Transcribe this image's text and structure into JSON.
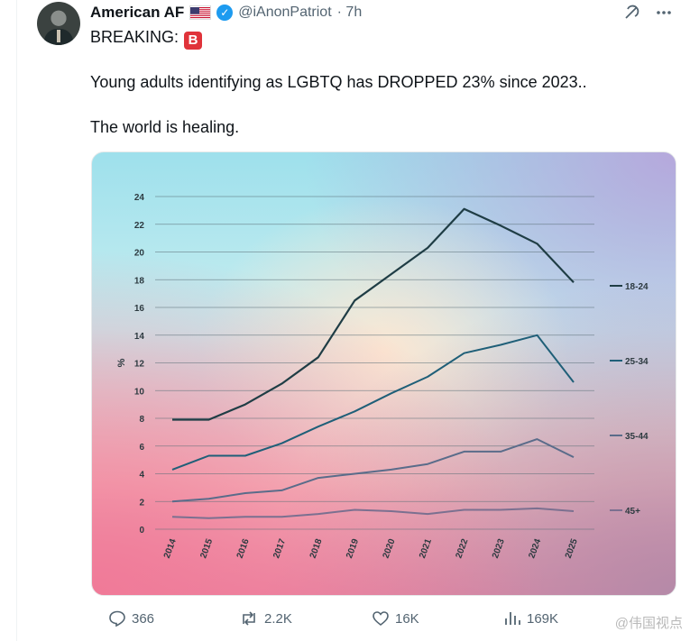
{
  "tweet": {
    "author_name": "American AF",
    "handle": "@iAnonPatriot",
    "time": "· 7h",
    "line1": "BREAKING:",
    "badge": "B",
    "line2": "Young adults identifying as LGBTQ has DROPPED 23% since 2023..",
    "line3": "The world is healing."
  },
  "icons": {
    "verified": "verified-badge-icon",
    "flag": "us-flag-icon",
    "grok": "grok-icon",
    "more": "more-icon"
  },
  "actions": {
    "replies": "366",
    "reposts": "2.2K",
    "likes": "16K",
    "views": "169K"
  },
  "watermark": "@伟国视点",
  "colors": {
    "accent": "#1d9bf0",
    "badge": "#e0333a"
  },
  "chart_data": {
    "type": "line",
    "ylabel": "%",
    "ylim": [
      0,
      24
    ],
    "yticks": [
      0,
      2,
      4,
      6,
      8,
      10,
      12,
      14,
      16,
      18,
      20,
      22,
      24
    ],
    "categories": [
      "2014",
      "2015",
      "2016",
      "2017",
      "2018",
      "2019",
      "2020",
      "2021",
      "2022",
      "2023",
      "2024",
      "2025"
    ],
    "series": [
      {
        "name": "18-24",
        "color": "#1f3d45",
        "values": [
          7.9,
          7.9,
          9.0,
          10.5,
          12.4,
          16.5,
          18.4,
          20.3,
          23.1,
          21.9,
          20.6,
          17.8
        ]
      },
      {
        "name": "25-34",
        "color": "#1f5f78",
        "values": [
          4.3,
          5.3,
          5.3,
          6.2,
          7.4,
          8.5,
          9.8,
          11.0,
          12.7,
          13.3,
          14.0,
          10.6
        ]
      },
      {
        "name": "35-44",
        "color": "#5a6c8a",
        "values": [
          2.0,
          2.2,
          2.6,
          2.8,
          3.7,
          4.0,
          4.3,
          4.7,
          5.6,
          5.6,
          6.5,
          5.2
        ]
      },
      {
        "name": "45+",
        "color": "#7b7090",
        "values": [
          0.9,
          0.8,
          0.9,
          0.9,
          1.1,
          1.4,
          1.3,
          1.1,
          1.4,
          1.4,
          1.5,
          1.3
        ]
      }
    ],
    "grid": true,
    "legend": "right"
  }
}
